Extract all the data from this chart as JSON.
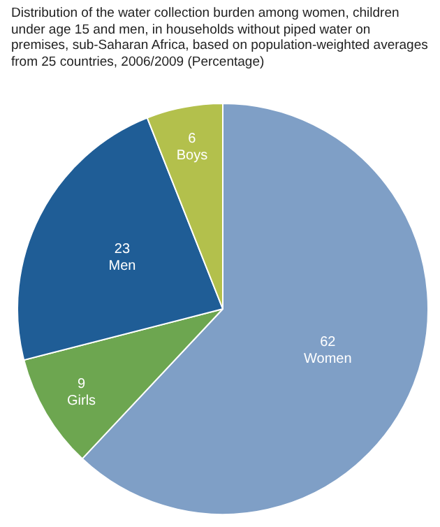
{
  "chart_data": {
    "type": "pie",
    "title": "Distribution of the water collection burden among women, children under age 15 and men, in households without piped water on premises, sub-Saharan Africa,  based on population-weighted averages from 25 countries, 2006/2009 (Percentage)",
    "categories": [
      "Women",
      "Girls",
      "Men",
      "Boys"
    ],
    "values": [
      62,
      9,
      23,
      6
    ],
    "colors": [
      "#7f9fc6",
      "#6da650",
      "#1f5d96",
      "#b3c04c"
    ],
    "data_labels": true,
    "legend": false
  }
}
